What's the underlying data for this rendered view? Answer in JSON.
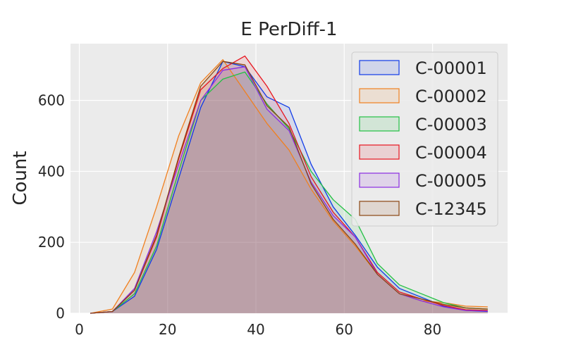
{
  "chart_data": {
    "type": "area",
    "title": "E PerDiff-1",
    "xlabel": "",
    "ylabel": "Count",
    "xlim": [
      -2,
      97
    ],
    "ylim": [
      0,
      760
    ],
    "xticks": [
      0,
      20,
      40,
      60,
      80
    ],
    "yticks": [
      0,
      200,
      400,
      600
    ],
    "grid": true,
    "legend_position": "top-right",
    "x": [
      2.5,
      7.5,
      12.5,
      17.5,
      22.5,
      27.5,
      32.5,
      37.5,
      42.5,
      47.5,
      52.5,
      57.5,
      62.5,
      67.5,
      72.5,
      77.5,
      82.5,
      87.5,
      92.5
    ],
    "series": [
      {
        "name": "C-00001",
        "color": "#0f3ae8",
        "values": [
          0,
          5,
          48,
          180,
          380,
          580,
          710,
          695,
          610,
          580,
          420,
          300,
          220,
          130,
          70,
          45,
          20,
          8,
          5
        ]
      },
      {
        "name": "C-00002",
        "color": "#f08020",
        "values": [
          0,
          12,
          115,
          300,
          500,
          650,
          715,
          625,
          535,
          460,
          350,
          260,
          190,
          110,
          55,
          35,
          30,
          20,
          18
        ]
      },
      {
        "name": "C-00003",
        "color": "#22c043",
        "values": [
          0,
          5,
          55,
          190,
          400,
          600,
          660,
          680,
          590,
          520,
          400,
          320,
          265,
          140,
          80,
          55,
          30,
          15,
          12
        ]
      },
      {
        "name": "C-00004",
        "color": "#e8141e",
        "values": [
          0,
          5,
          65,
          215,
          435,
          630,
          690,
          725,
          640,
          535,
          385,
          285,
          215,
          115,
          60,
          40,
          22,
          10,
          8
        ]
      },
      {
        "name": "C-00005",
        "color": "#8b2be2",
        "values": [
          0,
          5,
          70,
          230,
          420,
          600,
          685,
          695,
          575,
          515,
          370,
          275,
          215,
          110,
          55,
          35,
          18,
          8,
          6
        ]
      },
      {
        "name": "C-12345",
        "color": "#8b4513",
        "values": [
          0,
          5,
          65,
          220,
          440,
          640,
          710,
          700,
          585,
          525,
          365,
          265,
          195,
          110,
          55,
          40,
          25,
          15,
          12
        ]
      }
    ]
  }
}
